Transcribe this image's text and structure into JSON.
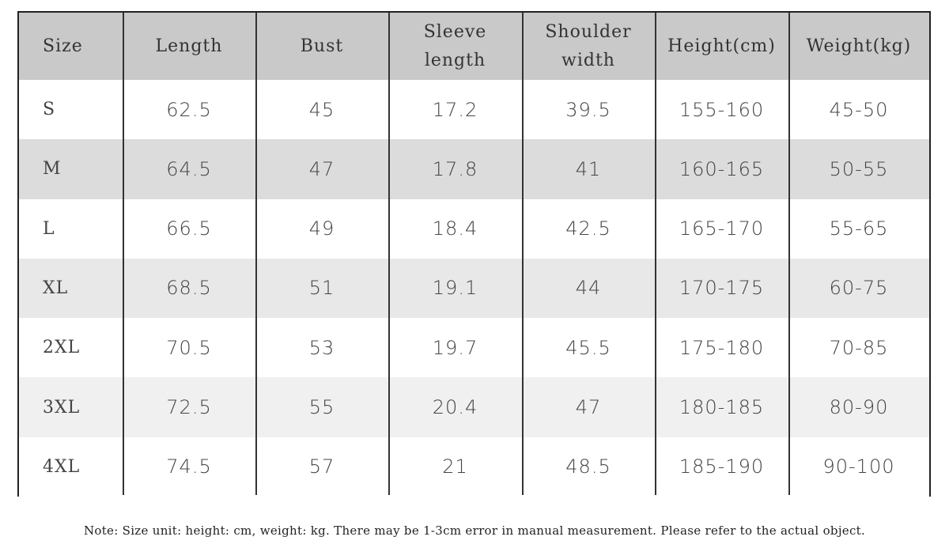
{
  "table": {
    "header": [
      "Size",
      "Length",
      "Bust",
      "Sleeve length",
      "Shoulder width",
      "Height(cm)",
      "Weight(kg)"
    ],
    "rows": [
      [
        "S",
        "62.5",
        "45",
        "17.2",
        "39.5",
        "155-160",
        "45-50"
      ],
      [
        "M",
        "64.5",
        "47",
        "17.8",
        "41",
        "160-165",
        "50-55"
      ],
      [
        "L",
        "66.5",
        "49",
        "18.4",
        "42.5",
        "165-170",
        "55-65"
      ],
      [
        "XL",
        "68.5",
        "51",
        "19.1",
        "44",
        "170-175",
        "60-75"
      ],
      [
        "2XL",
        "70.5",
        "53",
        "19.7",
        "45.5",
        "175-180",
        "70-85"
      ],
      [
        "3XL",
        "72.5",
        "55",
        "20.4",
        "47",
        "180-185",
        "80-90"
      ],
      [
        "4XL",
        "74.5",
        "57",
        "21",
        "48.5",
        "185-190",
        "90-100"
      ]
    ]
  },
  "note": "Note: Size unit: height: cm, weight: kg. There may be 1-3cm error in manual measurement. Please refer to the actual object."
}
